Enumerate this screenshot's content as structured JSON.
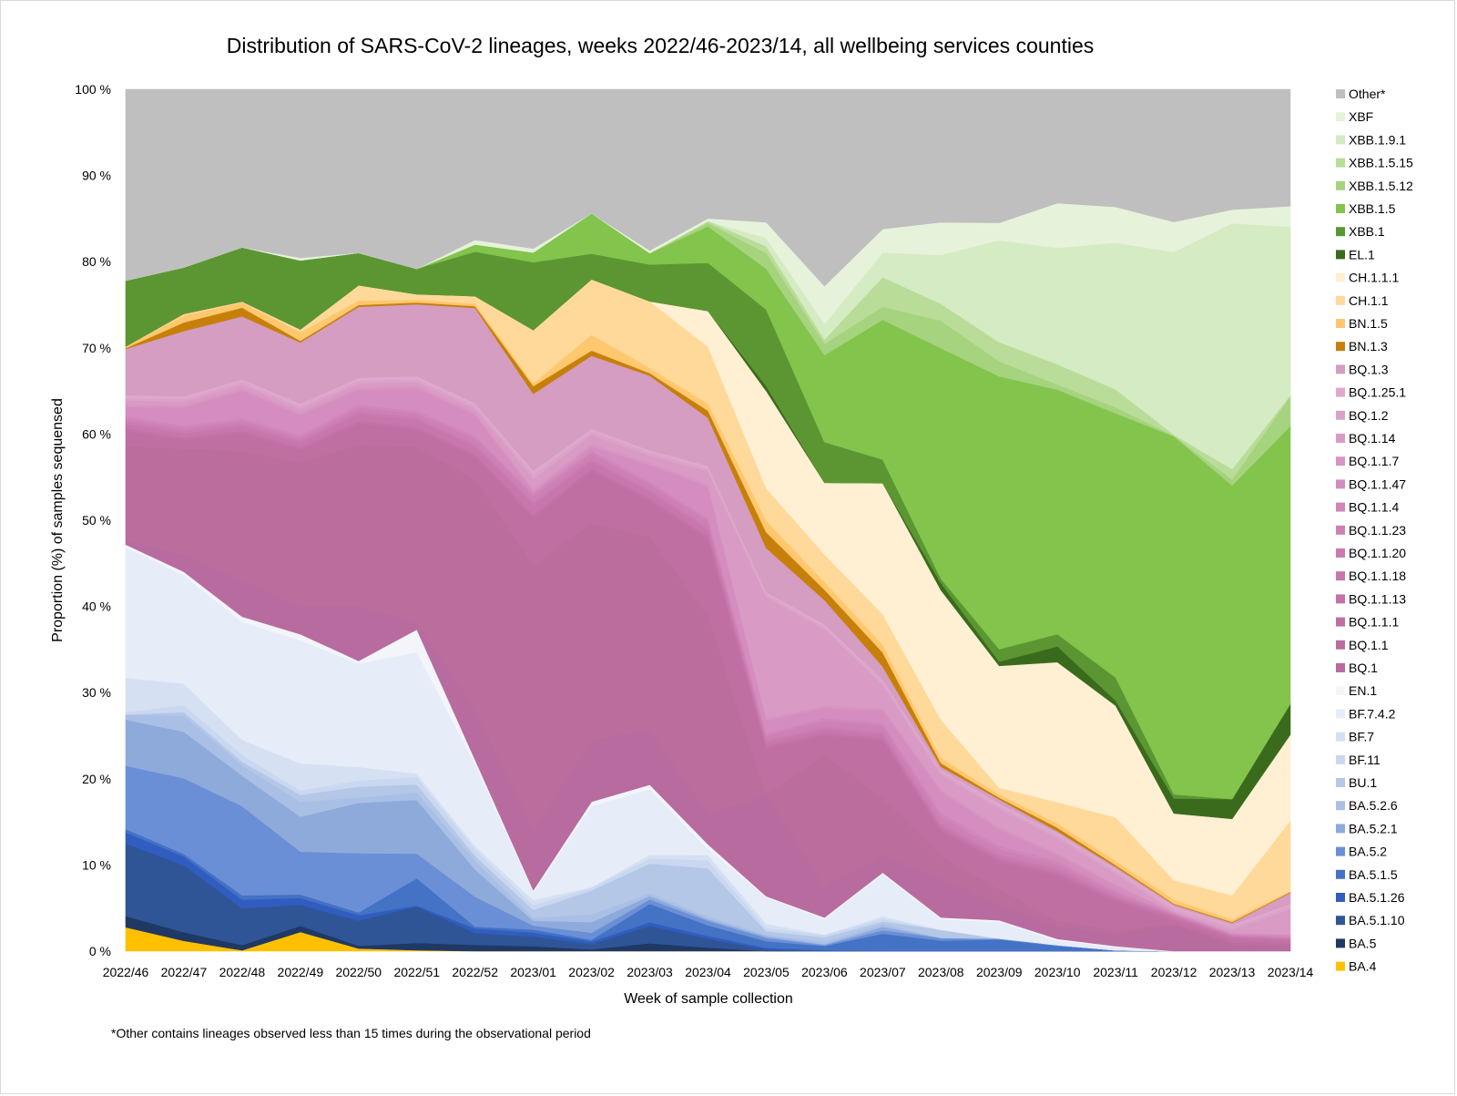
{
  "chart_data": {
    "type": "area",
    "stacked": true,
    "title": "Distribution of SARS-CoV-2 lineages, weeks 2022/46-2023/14, all wellbeing services counties",
    "xlabel": "Week of sample collection",
    "ylabel": "Proportion (%) of samples sequensed",
    "ylim": [
      0,
      100
    ],
    "y_ticks": [
      "0 %",
      "10 %",
      "20 %",
      "30 %",
      "40 %",
      "50 %",
      "60 %",
      "70 %",
      "80 %",
      "90 %",
      "100 %"
    ],
    "footnote": "*Other contains lineages observed less than 15 times during the observational period",
    "categories": [
      "2022/46",
      "2022/47",
      "2022/48",
      "2022/49",
      "2022/50",
      "2022/51",
      "2022/52",
      "2023/01",
      "2023/02",
      "2023/03",
      "2023/04",
      "2023/05",
      "2023/06",
      "2023/07",
      "2023/08",
      "2023/09",
      "2023/10",
      "2023/11",
      "2023/12",
      "2023/13",
      "2023/14"
    ],
    "series": [
      {
        "name": "BA.4",
        "color": "#FFC000",
        "values": [
          2.8,
          1.2,
          0.1,
          2.2,
          0.3,
          0.1,
          0,
          0,
          0,
          0,
          0,
          0,
          0,
          0,
          0,
          0,
          0,
          0,
          0,
          0,
          0
        ]
      },
      {
        "name": "BA.5",
        "color": "#203864",
        "values": [
          1.3,
          1,
          0.6,
          0.7,
          0.3,
          0.8,
          0.7,
          0.5,
          0.2,
          0.9,
          0.4,
          0,
          0,
          0,
          0,
          0,
          0,
          0,
          0,
          0,
          0
        ]
      },
      {
        "name": "BA.5.1.10",
        "color": "#2F5597",
        "values": [
          8.5,
          7.8,
          4.2,
          2.4,
          2.8,
          4,
          1.3,
          1,
          0.6,
          2,
          1,
          0.2,
          0,
          0,
          0,
          0,
          0,
          0,
          0,
          0,
          0
        ]
      },
      {
        "name": "BA.5.1.26",
        "color": "#305DBF",
        "values": [
          1.3,
          1,
          1,
          0.8,
          0.6,
          0.1,
          0.5,
          0.4,
          0.3,
          0.4,
          0.3,
          0.2,
          0.1,
          0,
          0,
          0,
          0,
          0,
          0,
          0,
          0
        ]
      },
      {
        "name": "BA.5.1.5",
        "color": "#4472C4",
        "values": [
          0.4,
          0.3,
          0.5,
          0.4,
          0.3,
          3,
          0.2,
          0.3,
          0.2,
          2.1,
          1.2,
          0.8,
          0.5,
          2,
          1.2,
          1.4,
          0.6,
          0.1,
          0,
          0,
          0
        ]
      },
      {
        "name": "BA.5.2",
        "color": "#6A8FD6",
        "values": [
          7.4,
          8.8,
          10.2,
          4.9,
          6.6,
          2.7,
          3.3,
          0.4,
          0.8,
          0.5,
          0.5,
          0.4,
          0.1,
          0.4,
          0.3,
          0.1,
          0.1,
          0,
          0,
          0,
          0
        ]
      },
      {
        "name": "BA.5.2.1",
        "color": "#8EAADB",
        "values": [
          5.4,
          5.4,
          3.5,
          4,
          5.6,
          5.9,
          3,
          0.5,
          1.2,
          0.4,
          0.2,
          0.2,
          0.1,
          0.4,
          0,
          0,
          0,
          0,
          0,
          0,
          0
        ]
      },
      {
        "name": "BA.5.2.6",
        "color": "#A9BFE6",
        "values": [
          0.6,
          1.9,
          1.2,
          1.7,
          0.6,
          0.8,
          1,
          0.3,
          0.9,
          0.3,
          0.3,
          0.2,
          0.3,
          0.3,
          0,
          0,
          0,
          0,
          0,
          0,
          0
        ]
      },
      {
        "name": "BU.1",
        "color": "#B4C7E7",
        "values": [
          0,
          0.4,
          0.4,
          0.8,
          1.2,
          0.9,
          0.5,
          0.8,
          2.7,
          3.4,
          5.4,
          0.4,
          0.5,
          0.3,
          0.9,
          0,
          0,
          0,
          0,
          0,
          0
        ]
      },
      {
        "name": "BF.11",
        "color": "#C9D7F0",
        "values": [
          0.3,
          0.8,
          0.8,
          0.5,
          0.7,
          0.8,
          0.7,
          0.5,
          0.3,
          0.6,
          0.9,
          0.4,
          0.3,
          0.3,
          0,
          0,
          0,
          0,
          0,
          0,
          0
        ]
      },
      {
        "name": "BF.7",
        "color": "#D6E0F3",
        "values": [
          4,
          2.5,
          1.7,
          3.1,
          1.5,
          0.4,
          0.4,
          0.5,
          0.1,
          0.4,
          0.6,
          0.5,
          0,
          0.3,
          0,
          0,
          0,
          0,
          0,
          0,
          0
        ]
      },
      {
        "name": "BF.7.4.2",
        "color": "#E6ECF8",
        "values": [
          15.3,
          12.6,
          13.5,
          14.1,
          11.5,
          13.3,
          9,
          0.8,
          9.2,
          7.5,
          0.7,
          3.2,
          1.8,
          4.8,
          1.2,
          2,
          0.5,
          0.4,
          0,
          0,
          0
        ]
      },
      {
        "name": "EN.1",
        "color": "#F3F5FB",
        "values": [
          0.3,
          0.4,
          0.6,
          0.7,
          0.3,
          2.5,
          0.5,
          0.2,
          0.5,
          0.5,
          0.5,
          0.1,
          0.2,
          0.2,
          0.2,
          0.2,
          0.2,
          0.1,
          0,
          0,
          0
        ]
      },
      {
        "name": "BQ.1",
        "color": "#B86B9E",
        "values": [
          0.5,
          2,
          4.2,
          3.2,
          6.1,
          0.8,
          5.6,
          6.1,
          7,
          6.3,
          3.4,
          12.2,
          3.6,
          1.9,
          4.4,
          1.8,
          1.4,
          1.4,
          3.1,
          0.7,
          0.6
        ]
      },
      {
        "name": "BQ.1.1",
        "color": "#BB6D9D",
        "values": [
          11,
          12.3,
          14.7,
          16.5,
          17.9,
          19.3,
          25.2,
          27,
          24.6,
          22,
          22.2,
          0.1,
          15.3,
          6.6,
          2.6,
          1.9,
          0.7,
          0.4,
          0.2,
          0.3,
          0.2
        ]
      },
      {
        "name": "BQ.1.1.1",
        "color": "#C06FA3",
        "values": [
          1.8,
          1,
          2.1,
          1.4,
          2.4,
          1.8,
          2.6,
          4.8,
          6,
          4.1,
          8.7,
          5.5,
          2.2,
          6.6,
          2.7,
          3.3,
          5.1,
          3.4,
          0.4,
          0.3,
          0.2
        ]
      },
      {
        "name": "BQ.1.1.13",
        "color": "#C372A8",
        "values": [
          0.3,
          0.3,
          0.3,
          0.3,
          0.3,
          0.3,
          0.3,
          0.3,
          0.3,
          0.3,
          0.3,
          0.3,
          0.3,
          0.3,
          0.3,
          0.3,
          0.3,
          0.3,
          0.3,
          0.3,
          0.3
        ]
      },
      {
        "name": "BQ.1.1.18",
        "color": "#C777AC",
        "values": [
          0.5,
          0.5,
          0.5,
          0.5,
          0.8,
          0.8,
          0.8,
          1,
          0.8,
          0.7,
          0.7,
          0.4,
          0.4,
          0.4,
          0.3,
          0.3,
          0.3,
          0.2,
          0.2,
          0.1,
          0.1
        ]
      },
      {
        "name": "BQ.1.1.20",
        "color": "#CA7BB0",
        "values": [
          0.3,
          0.3,
          0.3,
          0.3,
          0.3,
          0.3,
          0.3,
          0.3,
          0.3,
          0.3,
          0.3,
          0.3,
          0.3,
          0.3,
          0.3,
          0.3,
          0.3,
          0.2,
          0.1,
          0.1,
          0.1
        ]
      },
      {
        "name": "BQ.1.1.23",
        "color": "#CD80B3",
        "values": [
          0.3,
          0.3,
          0.3,
          0.3,
          0.4,
          0.4,
          0.6,
          0.6,
          0.6,
          0.6,
          0.7,
          0.5,
          0.7,
          0.7,
          0.7,
          0.6,
          0.4,
          0.3,
          0.1,
          0.1,
          0.1
        ]
      },
      {
        "name": "BQ.1.1.4",
        "color": "#D086B8",
        "values": [
          0.3,
          0.3,
          0.3,
          0.3,
          0.3,
          0.3,
          0.3,
          0.3,
          0.3,
          0.3,
          0.3,
          0.3,
          0.3,
          0.3,
          0.5,
          0.4,
          0.4,
          0.3,
          0.1,
          0.1,
          0.1
        ]
      },
      {
        "name": "BQ.1.1.47",
        "color": "#D48DBE",
        "values": [
          1.1,
          2.1,
          3.2,
          2.3,
          1.7,
          2.5,
          2.3,
          0.2,
          0.5,
          1.9,
          3.6,
          1.6,
          1.2,
          1.5,
          2.4,
          2,
          0.7,
          0.6,
          0.1,
          0.1,
          0.2
        ]
      },
      {
        "name": "BQ.1.1.7",
        "color": "#D795C3",
        "values": [
          0.3,
          0.3,
          0.3,
          0.3,
          0.3,
          0.3,
          0.3,
          0.3,
          0.3,
          0.3,
          0.3,
          0.3,
          0.3,
          0.3,
          0.3,
          0.3,
          0.2,
          0.2,
          0.1,
          0.1,
          0.1
        ]
      },
      {
        "name": "BQ.1.14",
        "color": "#D99BC5",
        "values": [
          0.5,
          0.4,
          0.4,
          0.4,
          0.4,
          0.4,
          0.4,
          1,
          1,
          0.8,
          1.4,
          14.5,
          8.8,
          2.6,
          1.6,
          2.2,
          1.7,
          1.2,
          0.1,
          0.3,
          2.9
        ]
      },
      {
        "name": "BQ.1.2",
        "color": "#DCA3CA",
        "values": [
          0.3,
          0.3,
          0.3,
          0.3,
          0.3,
          0.3,
          0.3,
          0.4,
          0.4,
          0.3,
          0.3,
          0.3,
          0.3,
          0.3,
          0.3,
          0.3,
          0.3,
          0.3,
          0.3,
          0.3,
          0.3
        ]
      },
      {
        "name": "BQ.1.25.1",
        "color": "#DEA9CD",
        "values": [
          0.3,
          0.3,
          0.3,
          0.3,
          0.3,
          0.3,
          0.3,
          0.4,
          0.3,
          0.3,
          0.3,
          0.3,
          0.3,
          0.3,
          0.3,
          0.3,
          0.3,
          0.3,
          0.3,
          0.3,
          0.3
        ]
      },
      {
        "name": "BQ.1.3",
        "color": "#D59DC1",
        "values": [
          5.4,
          7.6,
          7.2,
          7,
          7.9,
          7.9,
          10.5,
          7.8,
          8.3,
          8.5,
          5.4,
          5.3,
          2.8,
          1.5,
          0.3,
          0.5,
          0.2,
          0.2,
          0.2,
          0.2,
          1.3
        ]
      },
      {
        "name": "BN.1.3",
        "color": "#C6800A",
        "values": [
          0.1,
          1,
          1,
          0.2,
          0.2,
          0.2,
          0.2,
          0.8,
          0.6,
          0.3,
          0.8,
          1.9,
          1.2,
          1.6,
          0.4,
          0.2,
          0.4,
          0.2,
          0.1,
          0.1,
          0.1
        ]
      },
      {
        "name": "BN.1.5",
        "color": "#FFC76E",
        "values": [
          0.2,
          0.8,
          0.6,
          1,
          0.5,
          0.3,
          0.3,
          0.3,
          1.8,
          0.6,
          0.8,
          1.4,
          0.9,
          0.9,
          0.6,
          0.4,
          0.5,
          0.5,
          0.5,
          0.3,
          0.1
        ]
      },
      {
        "name": "CH.1.1",
        "color": "#FFD99A",
        "values": [
          0,
          0.2,
          0.1,
          0.3,
          1.7,
          0.6,
          0.8,
          5.4,
          6.3,
          7.6,
          6.4,
          3.9,
          3.2,
          3.5,
          4.3,
          0.8,
          2.4,
          5.1,
          2.3,
          2.8,
          8.2
        ]
      },
      {
        "name": "CH.1.1.1",
        "color": "#FFEFD3",
        "values": [
          0,
          0,
          0,
          0,
          0,
          0,
          0,
          0,
          0,
          0,
          4,
          11.7,
          8.3,
          15,
          14.6,
          14.6,
          16,
          13.1,
          8,
          8.9,
          10
        ]
      },
      {
        "name": "EL.1",
        "color": "#3A6B1D",
        "values": [
          0,
          0,
          0,
          0,
          0,
          0,
          0,
          0,
          0,
          0,
          0,
          0.6,
          0,
          0,
          0.8,
          0.5,
          1.8,
          0.6,
          1.8,
          2.3,
          3.6
        ]
      },
      {
        "name": "XBB.1",
        "color": "#5C9632",
        "values": [
          7.7,
          5.4,
          6.2,
          7.9,
          3.6,
          2.8,
          4.9,
          6.9,
          2.9,
          4.2,
          5.4,
          9.2,
          4.7,
          2.7,
          0.5,
          1.5,
          1.4,
          2.7,
          0.5,
          0,
          0
        ]
      },
      {
        "name": "XBB.1.5",
        "color": "#82C44C",
        "values": [
          0,
          0,
          0,
          0,
          0,
          0,
          0.8,
          1,
          4.6,
          1.3,
          4.1,
          4.9,
          10.1,
          16,
          26,
          32.7,
          27.9,
          31,
          42.9,
          36.5,
          32.3
        ]
      },
      {
        "name": "XBB.1.5.12",
        "color": "#A5D37E",
        "values": [
          0,
          0,
          0,
          0,
          0,
          0,
          0,
          0,
          0,
          0,
          0.4,
          1.9,
          1.3,
          1.5,
          3.1,
          1.8,
          0.6,
          0.7,
          0.1,
          0.7,
          3.5
        ]
      },
      {
        "name": "XBB.1.5.15",
        "color": "#B9DD98",
        "values": [
          0,
          0,
          0,
          0,
          0,
          0,
          0,
          0,
          0,
          0,
          0.2,
          0.8,
          0.5,
          3.4,
          1.9,
          2.3,
          2.3,
          2.1,
          0.1,
          1.2,
          0.1
        ]
      },
      {
        "name": "XBB.1.9.1",
        "color": "#D5EBC3",
        "values": [
          0,
          0,
          0,
          0,
          0,
          0,
          0,
          0,
          0,
          0,
          0,
          1,
          1.8,
          2.8,
          5.5,
          12.2,
          13.3,
          17.2,
          21.9,
          28.6,
          19.6
        ]
      },
      {
        "name": "XBF",
        "color": "#E6F2DA",
        "values": [
          0,
          0,
          0,
          0.3,
          0,
          0,
          0.5,
          0.4,
          0,
          0.3,
          0.3,
          1.9,
          4.4,
          2.7,
          3.7,
          2.1,
          5.1,
          4.2,
          3.6,
          1.6,
          2.4
        ]
      },
      {
        "name": "Other*",
        "color": "#BFBFBF",
        "values": [
          22.4,
          20.7,
          18.1,
          19.3,
          18.2,
          19.7,
          16.6,
          16.2,
          14.1,
          18.4,
          14.5,
          16,
          22.8,
          16,
          15,
          16,
          13,
          13.8,
          15.9,
          14,
          13.6
        ]
      }
    ]
  }
}
